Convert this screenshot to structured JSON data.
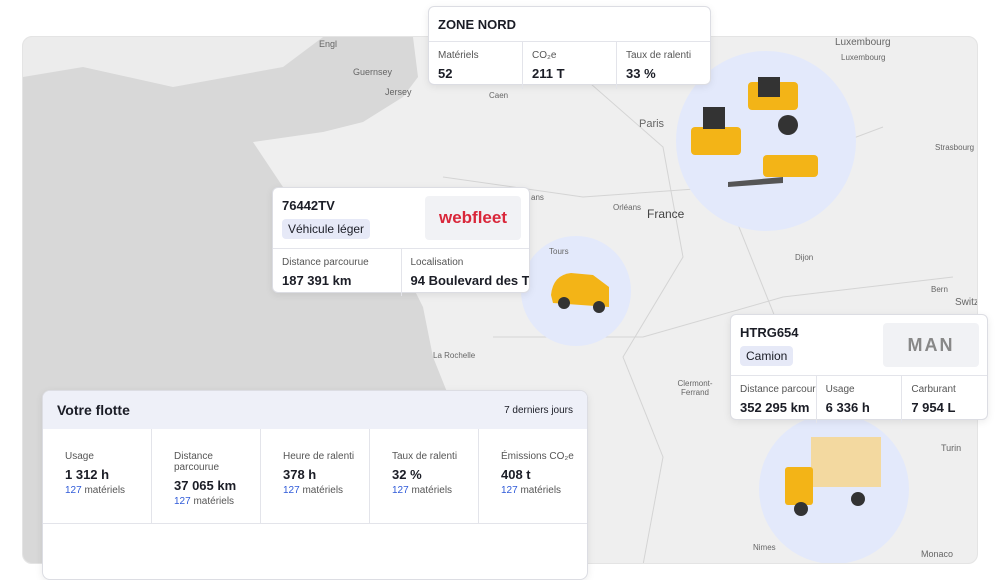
{
  "map": {
    "labels": [
      "Engl",
      "Guernsey",
      "Jersey",
      "Caen",
      "Paris",
      "Luxembourg",
      "Luxembourg",
      "Strasbourg",
      "ans",
      "Orléans",
      "France",
      "Tours",
      "Dijon",
      "Bern",
      "Switz",
      "La Rochelle",
      "Clermont-Ferrand",
      "Turin",
      "Nimes",
      "Monaco"
    ]
  },
  "zone": {
    "title": "ZONE NORD",
    "stats": [
      {
        "label": "Matériels",
        "value": "52"
      },
      {
        "label": "CO₂e",
        "value": "211 T"
      },
      {
        "label": "Taux de ralenti",
        "value": "33 %"
      }
    ]
  },
  "car": {
    "id": "76442TV",
    "tag": "Véhicule léger",
    "logo": "webfleet",
    "stats": [
      {
        "label": "Distance parcourue",
        "value": "187 391 km"
      },
      {
        "label": "Localisation",
        "value": "94 Boulevard des T…"
      }
    ]
  },
  "truck": {
    "id": "HTRG654",
    "tag": "Camion",
    "logo": "MAN",
    "stats": [
      {
        "label": "Distance parcourue",
        "value": "352 295 km"
      },
      {
        "label": "Usage",
        "value": "6 336 h"
      },
      {
        "label": "Carburant",
        "value": "7 954 L"
      }
    ]
  },
  "fleet": {
    "title": "Votre flotte",
    "period": "7 derniers jours",
    "stats": [
      {
        "label": "Usage",
        "value": "1 312 h",
        "count": "127",
        "unit": "matériels"
      },
      {
        "label": "Distance parcourue",
        "value": "37 065 km",
        "count": "127",
        "unit": "matériels"
      },
      {
        "label": "Heure de ralenti",
        "value": "378 h",
        "count": "127",
        "unit": "matériels"
      },
      {
        "label": "Taux de ralenti",
        "value": "32 %",
        "count": "127",
        "unit": "matériels"
      },
      {
        "label": "Émissions CO₂e",
        "value": "408 t",
        "count": "127",
        "unit": "matériels"
      }
    ]
  }
}
